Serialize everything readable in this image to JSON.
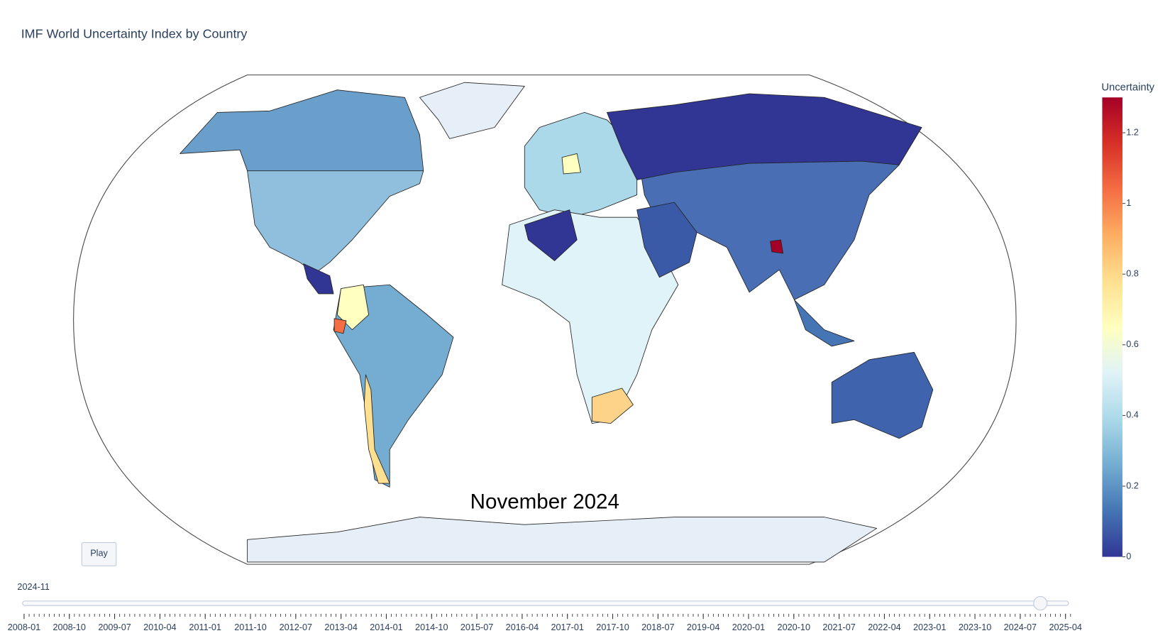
{
  "title": "IMF World Uncertainty Index by Country",
  "annotation": "November 2024",
  "play_button": "Play",
  "colorbar": {
    "title": "Uncertainty",
    "range": [
      0,
      1.3
    ],
    "ticks": [
      0,
      0.2,
      0.4,
      0.6,
      0.8,
      1,
      1.2
    ],
    "colors": [
      "#313695",
      "#4575b4",
      "#74add1",
      "#abd9e9",
      "#e0f3f8",
      "#ffffbf",
      "#fee090",
      "#fdae61",
      "#f46d43",
      "#d73027",
      "#a50026"
    ]
  },
  "slider": {
    "current": "2024-11",
    "ticks": [
      "2008-01",
      "2008-10",
      "2009-07",
      "2010-04",
      "2011-01",
      "2011-10",
      "2012-07",
      "2013-04",
      "2014-01",
      "2014-10",
      "2015-07",
      "2016-04",
      "2017-01",
      "2017-10",
      "2018-07",
      "2019-04",
      "2020-01",
      "2020-10",
      "2021-07",
      "2022-04",
      "2023-01",
      "2023-10",
      "2024-07",
      "2025-04"
    ]
  }
}
